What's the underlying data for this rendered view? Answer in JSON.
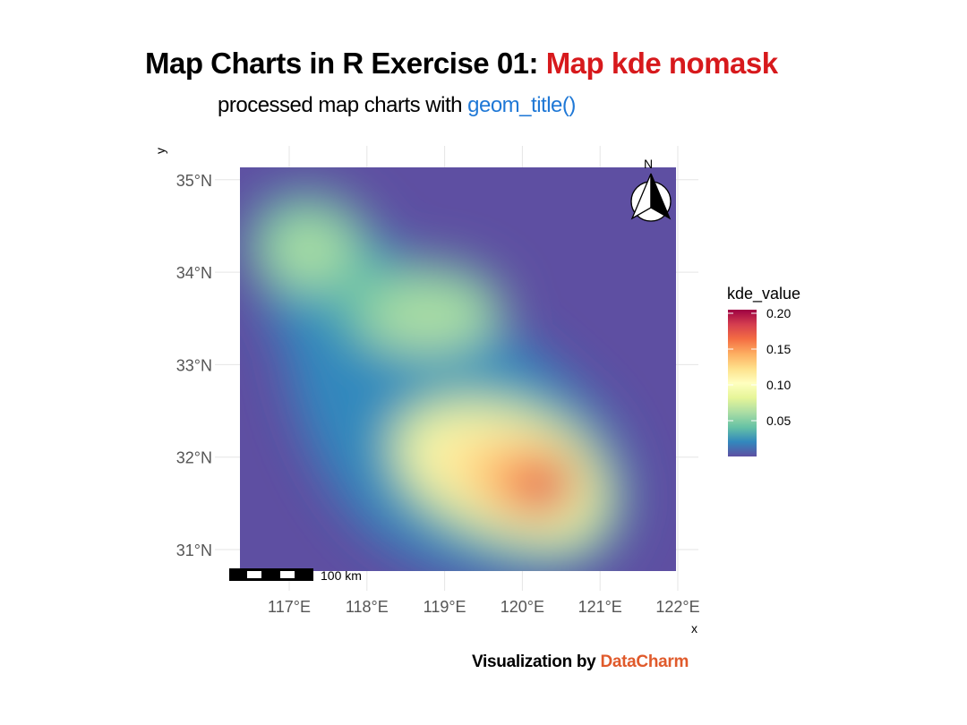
{
  "header": {
    "title_main": "Map Charts in R Exercise 01:",
    "title_accent": "Map kde nomask",
    "subtitle_main": "processed map charts with",
    "subtitle_code": "geom_title()"
  },
  "caption": {
    "prefix": "Visualization by",
    "brand": "DataCharm"
  },
  "chart_data": {
    "type": "heatmap",
    "xlabel": "x",
    "ylabel": "y",
    "x_ticks": [
      "117°E",
      "118°E",
      "119°E",
      "120°E",
      "121°E",
      "122°E"
    ],
    "y_ticks": [
      "31°N",
      "32°N",
      "33°N",
      "34°N",
      "35°N"
    ],
    "xlim": [
      116.5,
      122.0
    ],
    "ylim": [
      30.75,
      35.15
    ],
    "x_tick_values": [
      117,
      118,
      119,
      120,
      121,
      122
    ],
    "y_tick_values": [
      31,
      32,
      33,
      34,
      35
    ],
    "grid": true,
    "legend": {
      "title": "kde_value",
      "position": "right",
      "labels": [
        "0.20",
        "0.15",
        "0.10",
        "0.05"
      ],
      "values": [
        0.2,
        0.15,
        0.1,
        0.05
      ],
      "range": [
        0.0,
        0.205
      ],
      "colors": [
        "#5e4fa2",
        "#3288bd",
        "#66c2a5",
        "#abdda4",
        "#e6f598",
        "#ffffbf",
        "#fee08b",
        "#fdae61",
        "#f46d43",
        "#d53e4f",
        "#9e0142"
      ]
    },
    "peak": {
      "lon": 120.4,
      "lat": 31.6,
      "value": 0.2
    },
    "north_arrow_label": "N",
    "scale_bar_label": "100 km"
  }
}
